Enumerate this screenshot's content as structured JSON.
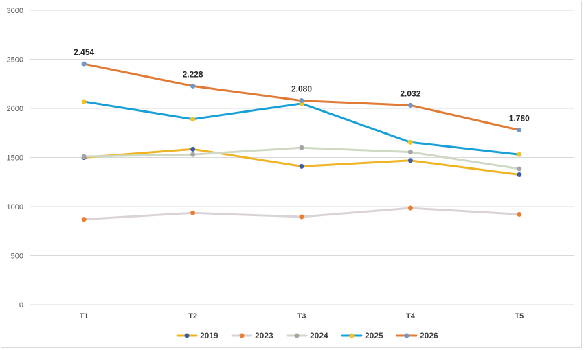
{
  "chart_data": {
    "type": "line",
    "title": "",
    "xlabel": "",
    "ylabel": "",
    "ylim": [
      0,
      3000
    ],
    "yticks": [
      0,
      500,
      1000,
      1500,
      2000,
      2500,
      3000
    ],
    "grid": true,
    "legend_position": "bottom",
    "categories": [
      "T1",
      "T2",
      "T3",
      "T4",
      "T5"
    ],
    "series": [
      {
        "name": "2019",
        "line_color": "#f0b323",
        "marker_color": "#3a5fa8",
        "values": [
          1500,
          1585,
          1410,
          1470,
          1325
        ]
      },
      {
        "name": "2023",
        "line_color": "#d9d3d8",
        "marker_color": "#ed7d31",
        "values": [
          870,
          935,
          895,
          985,
          920
        ]
      },
      {
        "name": "2024",
        "line_color": "#cfd8c3",
        "marker_color": "#a5a5a5",
        "values": [
          1510,
          1530,
          1600,
          1555,
          1385
        ]
      },
      {
        "name": "2025",
        "line_color": "#17a0d8",
        "marker_color": "#f5c21b",
        "values": [
          2070,
          1890,
          2050,
          1655,
          1530
        ]
      },
      {
        "name": "2026",
        "line_color": "#e07a34",
        "marker_color": "#6c99cd",
        "values": [
          2454,
          2228,
          2080,
          2032,
          1780
        ],
        "data_labels": [
          "2.454",
          "2.228",
          "2.080",
          "2.032",
          "1.780"
        ]
      }
    ]
  }
}
